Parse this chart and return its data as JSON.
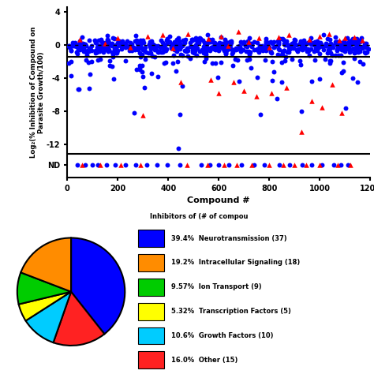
{
  "blue_color": "#0000FF",
  "red_color": "#FF0000",
  "hline_solid_y": -1.5,
  "hline_dotted_y": 0.0,
  "nd_y_plot": -14.5,
  "nd_separator_y": -13.2,
  "ylim_top": 4.5,
  "ylim_bottom": -16.0,
  "xlim_left": 0,
  "xlim_right": 1200,
  "yticks": [
    4,
    0,
    -4,
    -8,
    -12
  ],
  "ytick_labels": [
    "4",
    "0",
    "-4",
    "-8",
    "-12"
  ],
  "nd_label": "ND",
  "xlabel": "Compound #",
  "ylabel": "Log₂(% Inhibition of Compound on\nParasite Growth/100)",
  "pie_sizes": [
    39.4,
    16.0,
    10.6,
    5.32,
    9.57,
    19.2
  ],
  "pie_colors": [
    "#0000FF",
    "#FF2222",
    "#00CCFF",
    "#FFFF00",
    "#00CC00",
    "#FF8C00"
  ],
  "pie_legend_labels": [
    "39.4%  Neurotransmission (37)",
    "19.2%  Intracellular Signaling (18)",
    "9.57%  Ion Transport (9)",
    "5.32%  Transcription Factors (5)",
    "10.6%  Growth Factors (10)",
    "16.0%  Other (15)"
  ],
  "pie_legend_colors": [
    "#0000FF",
    "#FF8C00",
    "#00CC00",
    "#FFFF00",
    "#00CCFF",
    "#FF2222"
  ],
  "pie_legend_title": "Inhibitors of (# of compou",
  "pie_startangle": 90,
  "scatter_alpha": 1.0,
  "marker_size_circle": 18,
  "marker_size_triangle": 22,
  "blue_nd_x": [
    40,
    70,
    100,
    120,
    155,
    190,
    230,
    270,
    315,
    355,
    395,
    445,
    530,
    565,
    600,
    640,
    690,
    740,
    780,
    840,
    880,
    930,
    968,
    1008,
    1055,
    1082,
    1112
  ],
  "red_nd_x": [
    58,
    130,
    210,
    290,
    475,
    555,
    620,
    670,
    730,
    800,
    855,
    900,
    945,
    1000,
    1072,
    1122
  ]
}
